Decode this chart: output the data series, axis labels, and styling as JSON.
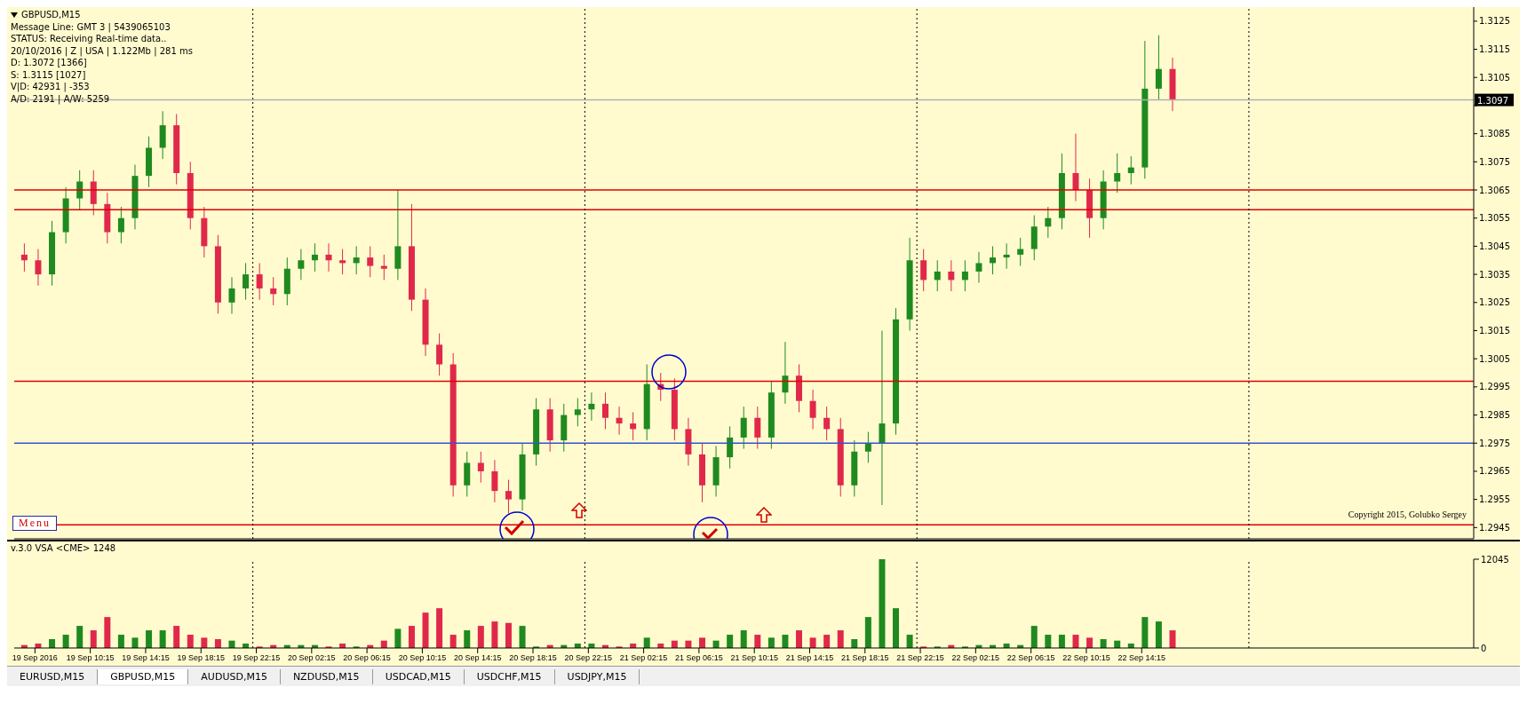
{
  "chart_data": [
    {
      "type": "candlestick",
      "title": "GBPUSD,M15",
      "annotations": [
        "Message Line: GMT 3 | 5439065103",
        "STATUS:  Receiving Real-time data..",
        "20/10/2016 | Z | USA | 1.122Mb | 281 ms",
        "D: 1.3072  [1366]",
        "S: 1.3115  [1027]",
        "V|D: 42931 | -353",
        "A/D: 2191 | A/W: 5259",
        "Menu",
        "Copyright 2015, Golubko Sergey"
      ],
      "x": [
        "2016-09-19T05:30",
        "2016-09-19T06:30",
        "2016-09-19T07:30",
        "2016-09-19T08:30",
        "2016-09-19T09:30",
        "2016-09-19T10:30",
        "2016-09-19T11:30",
        "2016-09-19T12:30",
        "2016-09-19T13:30",
        "2016-09-19T14:30",
        "2016-09-19T15:30",
        "2016-09-19T16:30",
        "2016-09-19T17:30",
        "2016-09-19T18:30",
        "2016-09-19T19:30",
        "2016-09-19T20:30",
        "2016-09-19T21:30",
        "2016-09-19T22:30",
        "2016-09-19T23:30",
        "2016-09-20T00:30",
        "2016-09-20T01:30",
        "2016-09-20T02:30",
        "2016-09-20T03:30",
        "2016-09-20T04:30",
        "2016-09-20T05:30",
        "2016-09-20T06:30",
        "2016-09-20T07:30",
        "2016-09-20T08:30",
        "2016-09-20T09:30",
        "2016-09-20T10:30",
        "2016-09-20T11:30",
        "2016-09-20T12:30",
        "2016-09-20T13:30",
        "2016-09-20T14:30",
        "2016-09-20T15:30",
        "2016-09-20T16:30",
        "2016-09-20T17:30",
        "2016-09-20T18:30",
        "2016-09-20T19:30",
        "2016-09-20T20:30",
        "2016-09-20T21:30",
        "2016-09-20T22:30",
        "2016-09-20T23:30",
        "2016-09-21T00:30",
        "2016-09-21T01:30",
        "2016-09-21T02:30",
        "2016-09-21T03:30",
        "2016-09-21T04:30",
        "2016-09-21T05:30",
        "2016-09-21T06:30",
        "2016-09-21T07:30",
        "2016-09-21T08:30",
        "2016-09-21T09:30",
        "2016-09-21T10:30",
        "2016-09-21T11:30",
        "2016-09-21T12:30",
        "2016-09-21T13:30",
        "2016-09-21T14:30",
        "2016-09-21T15:30",
        "2016-09-21T16:30",
        "2016-09-21T17:30",
        "2016-09-21T18:30",
        "2016-09-21T19:30",
        "2016-09-21T20:30",
        "2016-09-21T21:30",
        "2016-09-21T22:30",
        "2016-09-21T23:30",
        "2016-09-22T00:30",
        "2016-09-22T01:30",
        "2016-09-22T02:30",
        "2016-09-22T03:30",
        "2016-09-22T04:30",
        "2016-09-22T05:30",
        "2016-09-22T06:30",
        "2016-09-22T07:30",
        "2016-09-22T08:30",
        "2016-09-22T09:30",
        "2016-09-22T10:30",
        "2016-09-22T11:30",
        "2016-09-22T12:30",
        "2016-09-22T13:30",
        "2016-09-22T14:30",
        "2016-09-22T15:30",
        "2016-09-22T16:30"
      ],
      "ohlc": [
        [
          1.3042,
          1.3046,
          1.3036,
          1.304
        ],
        [
          1.304,
          1.3044,
          1.3031,
          1.3035
        ],
        [
          1.3035,
          1.3054,
          1.3031,
          1.305
        ],
        [
          1.305,
          1.3066,
          1.3046,
          1.3062
        ],
        [
          1.3062,
          1.3072,
          1.3058,
          1.3068
        ],
        [
          1.3068,
          1.3072,
          1.3056,
          1.306
        ],
        [
          1.306,
          1.3064,
          1.3046,
          1.305
        ],
        [
          1.305,
          1.3059,
          1.3046,
          1.3055
        ],
        [
          1.3055,
          1.3074,
          1.3051,
          1.307
        ],
        [
          1.307,
          1.3084,
          1.3066,
          1.308
        ],
        [
          1.308,
          1.3093,
          1.3076,
          1.3088
        ],
        [
          1.3088,
          1.3092,
          1.3067,
          1.3071
        ],
        [
          1.3071,
          1.3075,
          1.3051,
          1.3055
        ],
        [
          1.3055,
          1.3059,
          1.3041,
          1.3045
        ],
        [
          1.3045,
          1.3049,
          1.3021,
          1.3025
        ],
        [
          1.3025,
          1.3034,
          1.3021,
          1.303
        ],
        [
          1.303,
          1.3039,
          1.3026,
          1.3035
        ],
        [
          1.3035,
          1.3039,
          1.3026,
          1.303
        ],
        [
          1.303,
          1.3034,
          1.3024,
          1.3028
        ],
        [
          1.3028,
          1.3041,
          1.3024,
          1.3037
        ],
        [
          1.3037,
          1.3044,
          1.3033,
          1.304
        ],
        [
          1.304,
          1.3046,
          1.3036,
          1.3042
        ],
        [
          1.3042,
          1.3046,
          1.3036,
          1.304
        ],
        [
          1.304,
          1.3044,
          1.3035,
          1.3039
        ],
        [
          1.3039,
          1.3045,
          1.3035,
          1.3041
        ],
        [
          1.3041,
          1.3045,
          1.3034,
          1.3038
        ],
        [
          1.3038,
          1.3042,
          1.3033,
          1.3037
        ],
        [
          1.3037,
          1.3065,
          1.3033,
          1.3045
        ],
        [
          1.3045,
          1.306,
          1.3022,
          1.3026
        ],
        [
          1.3026,
          1.303,
          1.3006,
          1.301
        ],
        [
          1.301,
          1.3014,
          1.2999,
          1.3003
        ],
        [
          1.3003,
          1.3007,
          1.2956,
          1.296
        ],
        [
          1.296,
          1.2972,
          1.2956,
          1.2968
        ],
        [
          1.2968,
          1.2972,
          1.2961,
          1.2965
        ],
        [
          1.2965,
          1.2969,
          1.2954,
          1.2958
        ],
        [
          1.2958,
          1.2962,
          1.295,
          1.2955
        ],
        [
          1.2955,
          1.2975,
          1.2951,
          1.2971
        ],
        [
          1.2971,
          1.2991,
          1.2967,
          1.2987
        ],
        [
          1.2987,
          1.2991,
          1.2972,
          1.2976
        ],
        [
          1.2976,
          1.2989,
          1.2972,
          1.2985
        ],
        [
          1.2985,
          1.2991,
          1.2981,
          1.2987
        ],
        [
          1.2987,
          1.2993,
          1.2983,
          1.2989
        ],
        [
          1.2989,
          1.2993,
          1.298,
          1.2984
        ],
        [
          1.2984,
          1.2988,
          1.2978,
          1.2982
        ],
        [
          1.2982,
          1.2986,
          1.2976,
          1.298
        ],
        [
          1.298,
          1.3003,
          1.2976,
          1.2996
        ],
        [
          1.2996,
          1.3,
          1.299,
          1.2994
        ],
        [
          1.2994,
          1.2998,
          1.2976,
          1.298
        ],
        [
          1.298,
          1.2984,
          1.2967,
          1.2971
        ],
        [
          1.2971,
          1.2975,
          1.2954,
          1.296
        ],
        [
          1.296,
          1.2974,
          1.2956,
          1.297
        ],
        [
          1.297,
          1.2981,
          1.2966,
          1.2977
        ],
        [
          1.2977,
          1.2988,
          1.2973,
          1.2984
        ],
        [
          1.2984,
          1.2988,
          1.2973,
          1.2977
        ],
        [
          1.2977,
          1.2997,
          1.2973,
          1.2993
        ],
        [
          1.2993,
          1.3011,
          1.2989,
          1.2999
        ],
        [
          1.2999,
          1.3003,
          1.2986,
          1.299
        ],
        [
          1.299,
          1.2994,
          1.298,
          1.2984
        ],
        [
          1.2984,
          1.2988,
          1.2976,
          1.298
        ],
        [
          1.298,
          1.2984,
          1.2956,
          1.296
        ],
        [
          1.296,
          1.2976,
          1.2956,
          1.2972
        ],
        [
          1.2972,
          1.2979,
          1.2968,
          1.2975
        ],
        [
          1.2975,
          1.3015,
          1.2953,
          1.2982
        ],
        [
          1.2982,
          1.3023,
          1.2978,
          1.3019
        ],
        [
          1.3019,
          1.3048,
          1.3015,
          1.304
        ],
        [
          1.304,
          1.3044,
          1.3029,
          1.3033
        ],
        [
          1.3033,
          1.304,
          1.3029,
          1.3036
        ],
        [
          1.3036,
          1.304,
          1.3029,
          1.3033
        ],
        [
          1.3033,
          1.304,
          1.3029,
          1.3036
        ],
        [
          1.3036,
          1.3043,
          1.3032,
          1.3039
        ],
        [
          1.3039,
          1.3045,
          1.3035,
          1.3041
        ],
        [
          1.3041,
          1.3046,
          1.3037,
          1.3042
        ],
        [
          1.3042,
          1.3048,
          1.3038,
          1.3044
        ],
        [
          1.3044,
          1.3056,
          1.304,
          1.3052
        ],
        [
          1.3052,
          1.3059,
          1.3048,
          1.3055
        ],
        [
          1.3055,
          1.3078,
          1.3051,
          1.3071
        ],
        [
          1.3071,
          1.3085,
          1.3061,
          1.3065
        ],
        [
          1.3065,
          1.3069,
          1.3048,
          1.3055
        ],
        [
          1.3055,
          1.3072,
          1.3051,
          1.3068
        ],
        [
          1.3068,
          1.3078,
          1.3064,
          1.3071
        ],
        [
          1.3071,
          1.3077,
          1.3067,
          1.3073
        ],
        [
          1.3073,
          1.3118,
          1.3069,
          1.3101
        ],
        [
          1.3101,
          1.312,
          1.3097,
          1.3108
        ],
        [
          1.3108,
          1.3112,
          1.3093,
          1.3097
        ]
      ],
      "colors": [
        "#e0294a",
        "#e0294a",
        "#1f8a1f",
        "#1f8a1f",
        "#1f8a1f",
        "#e0294a",
        "#e0294a",
        "#1f8a1f",
        "#1f8a1f",
        "#1f8a1f",
        "#1f8a1f",
        "#e0294a",
        "#e0294a",
        "#e0294a",
        "#e0294a",
        "#1f8a1f",
        "#1f8a1f",
        "#e0294a",
        "#e0294a",
        "#1f8a1f",
        "#1f8a1f",
        "#1f8a1f",
        "#e0294a",
        "#e0294a",
        "#1f8a1f",
        "#e0294a",
        "#e0294a",
        "#1f8a1f",
        "#e0294a",
        "#e0294a",
        "#e0294a",
        "#e0294a",
        "#1f8a1f",
        "#e0294a",
        "#e0294a",
        "#e0294a",
        "#1f8a1f",
        "#1f8a1f",
        "#e0294a",
        "#1f8a1f",
        "#1f8a1f",
        "#1f8a1f",
        "#e0294a",
        "#e0294a",
        "#e0294a",
        "#1f8a1f",
        "#e0294a",
        "#e0294a",
        "#e0294a",
        "#e0294a",
        "#1f8a1f",
        "#1f8a1f",
        "#1f8a1f",
        "#e0294a",
        "#1f8a1f",
        "#1f8a1f",
        "#e0294a",
        "#e0294a",
        "#e0294a",
        "#e0294a",
        "#1f8a1f",
        "#1f8a1f",
        "#1f8a1f",
        "#1f8a1f",
        "#1f8a1f",
        "#e0294a",
        "#1f8a1f",
        "#e0294a",
        "#1f8a1f",
        "#1f8a1f",
        "#1f8a1f",
        "#1f8a1f",
        "#1f8a1f",
        "#1f8a1f",
        "#1f8a1f",
        "#1f8a1f",
        "#e0294a",
        "#e0294a",
        "#1f8a1f",
        "#1f8a1f",
        "#1f8a1f",
        "#1f8a1f",
        "#1f8a1f",
        "#e0294a"
      ],
      "xlim": [
        "2016-09-19T04:45",
        "2016-09-23T14:15"
      ],
      "ylim": [
        1.2941,
        1.313
      ],
      "yticks": [
        1.2945,
        1.2955,
        1.2965,
        1.2975,
        1.2985,
        1.2995,
        1.3005,
        1.3015,
        1.3025,
        1.3035,
        1.3045,
        1.3055,
        1.3065,
        1.3075,
        1.3085,
        {
          "value": 1.3095,
          "label": null
        },
        1.3105,
        1.3115,
        1.3125
      ],
      "tick_labels": "y",
      "ref_lines": [
        {
          "axis": "y",
          "value": 1.3058,
          "color": "#e00000"
        },
        {
          "axis": "y",
          "value": 1.3065,
          "color": "#e00000"
        },
        {
          "axis": "y",
          "value": 1.2997,
          "color": "#e00000"
        },
        {
          "axis": "y",
          "value": 1.2946,
          "color": "#e00000"
        },
        {
          "axis": "y",
          "value": 1.2975,
          "color": "#3355cc"
        },
        {
          "axis": "y",
          "value": 1.3097,
          "label": "1.3097",
          "color": "#b0b0b0"
        },
        {
          "axis": "x",
          "value": "2016-09-19T22:00",
          "color": "#000000",
          "line_style": "dotted"
        },
        {
          "axis": "x",
          "value": "2016-09-20T22:00",
          "color": "#000000",
          "line_style": "dotted"
        },
        {
          "axis": "x",
          "value": "2016-09-21T22:00",
          "color": "#000000",
          "line_style": "dotted"
        },
        {
          "axis": "x",
          "value": "2016-09-22T22:00",
          "color": "#000000",
          "line_style": "dotted"
        }
      ]
    },
    {
      "type": "bar",
      "annotations": [
        "v.3.0 VSA <CME> 1248",
        "EURUSD,M15",
        "GBPUSD,M15",
        "AUDUSD,M15",
        "NZDUSD,M15",
        "USDCAD,M15",
        "USDCHF,M15",
        "USDJPY,M15"
      ],
      "x": [
        "2016-09-19T05:30",
        "2016-09-19T06:30",
        "2016-09-19T07:30",
        "2016-09-19T08:30",
        "2016-09-19T09:30",
        "2016-09-19T10:30",
        "2016-09-19T11:30",
        "2016-09-19T12:30",
        "2016-09-19T13:30",
        "2016-09-19T14:30",
        "2016-09-19T15:30",
        "2016-09-19T16:30",
        "2016-09-19T17:30",
        "2016-09-19T18:30",
        "2016-09-19T19:30",
        "2016-09-19T20:30",
        "2016-09-19T21:30",
        "2016-09-19T22:30",
        "2016-09-19T23:30",
        "2016-09-20T00:30",
        "2016-09-20T01:30",
        "2016-09-20T02:30",
        "2016-09-20T03:30",
        "2016-09-20T04:30",
        "2016-09-20T05:30",
        "2016-09-20T06:30",
        "2016-09-20T07:30",
        "2016-09-20T08:30",
        "2016-09-20T09:30",
        "2016-09-20T10:30",
        "2016-09-20T11:30",
        "2016-09-20T12:30",
        "2016-09-20T13:30",
        "2016-09-20T14:30",
        "2016-09-20T15:30",
        "2016-09-20T16:30",
        "2016-09-20T17:30",
        "2016-09-20T18:30",
        "2016-09-20T19:30",
        "2016-09-20T20:30",
        "2016-09-20T21:30",
        "2016-09-20T22:30",
        "2016-09-20T23:30",
        "2016-09-21T00:30",
        "2016-09-21T01:30",
        "2016-09-21T02:30",
        "2016-09-21T03:30",
        "2016-09-21T04:30",
        "2016-09-21T05:30",
        "2016-09-21T06:30",
        "2016-09-21T07:30",
        "2016-09-21T08:30",
        "2016-09-21T09:30",
        "2016-09-21T10:30",
        "2016-09-21T11:30",
        "2016-09-21T12:30",
        "2016-09-21T13:30",
        "2016-09-21T14:30",
        "2016-09-21T15:30",
        "2016-09-21T16:30",
        "2016-09-21T17:30",
        "2016-09-21T18:30",
        "2016-09-21T19:30",
        "2016-09-21T20:30",
        "2016-09-21T21:30",
        "2016-09-21T22:30",
        "2016-09-21T23:30",
        "2016-09-22T00:30",
        "2016-09-22T01:30",
        "2016-09-22T02:30",
        "2016-09-22T03:30",
        "2016-09-22T04:30",
        "2016-09-22T05:30",
        "2016-09-22T06:30",
        "2016-09-22T07:30",
        "2016-09-22T08:30",
        "2016-09-22T09:30",
        "2016-09-22T10:30",
        "2016-09-22T11:30",
        "2016-09-22T12:30",
        "2016-09-22T13:30",
        "2016-09-22T14:30",
        "2016-09-22T15:30",
        "2016-09-22T16:30"
      ],
      "values": [
        400,
        600,
        1200,
        1800,
        3000,
        2400,
        4200,
        1800,
        1400,
        2400,
        2400,
        3000,
        1800,
        1400,
        1200,
        1000,
        600,
        200,
        400,
        400,
        400,
        400,
        200,
        600,
        200,
        400,
        1000,
        2600,
        3000,
        4800,
        5400,
        1800,
        2400,
        3000,
        3600,
        3400,
        3000,
        200,
        400,
        400,
        600,
        600,
        400,
        200,
        600,
        1400,
        600,
        1000,
        1000,
        1400,
        1000,
        1800,
        2400,
        1800,
        1400,
        1800,
        2400,
        1400,
        1800,
        2400,
        1200,
        4200,
        12045,
        5400,
        1800,
        200,
        200,
        400,
        200,
        400,
        400,
        600,
        400,
        3000,
        1800,
        1800,
        1800,
        1400,
        1200,
        1000,
        600,
        4200,
        3600,
        2400
      ],
      "colors": [
        "#e0294a",
        "#e0294a",
        "#1f8a1f",
        "#1f8a1f",
        "#1f8a1f",
        "#e0294a",
        "#e0294a",
        "#1f8a1f",
        "#1f8a1f",
        "#1f8a1f",
        "#1f8a1f",
        "#e0294a",
        "#e0294a",
        "#e0294a",
        "#e0294a",
        "#1f8a1f",
        "#1f8a1f",
        "#e0294a",
        "#e0294a",
        "#1f8a1f",
        "#1f8a1f",
        "#1f8a1f",
        "#e0294a",
        "#e0294a",
        "#1f8a1f",
        "#e0294a",
        "#e0294a",
        "#1f8a1f",
        "#e0294a",
        "#e0294a",
        "#e0294a",
        "#e0294a",
        "#1f8a1f",
        "#e0294a",
        "#e0294a",
        "#e0294a",
        "#1f8a1f",
        "#1f8a1f",
        "#e0294a",
        "#1f8a1f",
        "#1f8a1f",
        "#1f8a1f",
        "#e0294a",
        "#e0294a",
        "#e0294a",
        "#1f8a1f",
        "#e0294a",
        "#e0294a",
        "#e0294a",
        "#e0294a",
        "#1f8a1f",
        "#1f8a1f",
        "#1f8a1f",
        "#e0294a",
        "#1f8a1f",
        "#1f8a1f",
        "#e0294a",
        "#e0294a",
        "#e0294a",
        "#e0294a",
        "#1f8a1f",
        "#1f8a1f",
        "#1f8a1f",
        "#1f8a1f",
        "#1f8a1f",
        "#e0294a",
        "#1f8a1f",
        "#e0294a",
        "#1f8a1f",
        "#1f8a1f",
        "#1f8a1f",
        "#1f8a1f",
        "#1f8a1f",
        "#1f8a1f",
        "#1f8a1f",
        "#1f8a1f",
        "#e0294a",
        "#e0294a",
        "#1f8a1f",
        "#1f8a1f",
        "#1f8a1f",
        "#1f8a1f",
        "#1f8a1f",
        "#e0294a"
      ],
      "xlim": [
        "2016-09-19T04:45",
        "2016-09-23T14:15"
      ],
      "xticks": [
        {
          "value": "2016-09-19T06:15",
          "label": "19 Sep 2016"
        },
        {
          "value": "2016-09-19T10:15",
          "label": "19 Sep 10:15"
        },
        {
          "value": "2016-09-19T14:15",
          "label": "19 Sep 14:15"
        },
        {
          "value": "2016-09-19T18:15",
          "label": "19 Sep 18:15"
        },
        {
          "value": "2016-09-19T22:15",
          "label": "19 Sep 22:15"
        },
        {
          "value": "2016-09-20T02:15",
          "label": "20 Sep 02:15"
        },
        {
          "value": "2016-09-20T06:15",
          "label": "20 Sep 06:15"
        },
        {
          "value": "2016-09-20T10:15",
          "label": "20 Sep 10:15"
        },
        {
          "value": "2016-09-20T14:15",
          "label": "20 Sep 14:15"
        },
        {
          "value": "2016-09-20T18:15",
          "label": "20 Sep 18:15"
        },
        {
          "value": "2016-09-20T22:15",
          "label": "20 Sep 22:15"
        },
        {
          "value": "2016-09-21T02:15",
          "label": "21 Sep 02:15"
        },
        {
          "value": "2016-09-21T06:15",
          "label": "21 Sep 06:15"
        },
        {
          "value": "2016-09-21T10:15",
          "label": "21 Sep 10:15"
        },
        {
          "value": "2016-09-21T14:15",
          "label": "21 Sep 14:15"
        },
        {
          "value": "2016-09-21T18:15",
          "label": "21 Sep 18:15"
        },
        {
          "value": "2016-09-21T22:15",
          "label": "21 Sep 22:15"
        },
        {
          "value": "2016-09-22T02:15",
          "label": "22 Sep 02:15"
        },
        {
          "value": "2016-09-22T06:15",
          "label": "22 Sep 06:15"
        },
        {
          "value": "2016-09-22T10:15",
          "label": "22 Sep 10:15"
        },
        {
          "value": "2016-09-22T14:15",
          "label": "22 Sep 14:15"
        }
      ],
      "ylim": [
        0,
        12045
      ],
      "yticks": [
        0,
        12045
      ],
      "ref_lines": [
        {
          "axis": "x",
          "value": "2016-09-19T22:00",
          "color": "#000000",
          "line_style": "dotted"
        },
        {
          "axis": "x",
          "value": "2016-09-20T22:00",
          "color": "#000000",
          "line_style": "dotted"
        },
        {
          "axis": "x",
          "value": "2016-09-21T22:00",
          "color": "#000000",
          "line_style": "dotted"
        },
        {
          "axis": "x",
          "value": "2016-09-22T22:00",
          "color": "#000000",
          "line_style": "dotted"
        }
      ]
    }
  ]
}
